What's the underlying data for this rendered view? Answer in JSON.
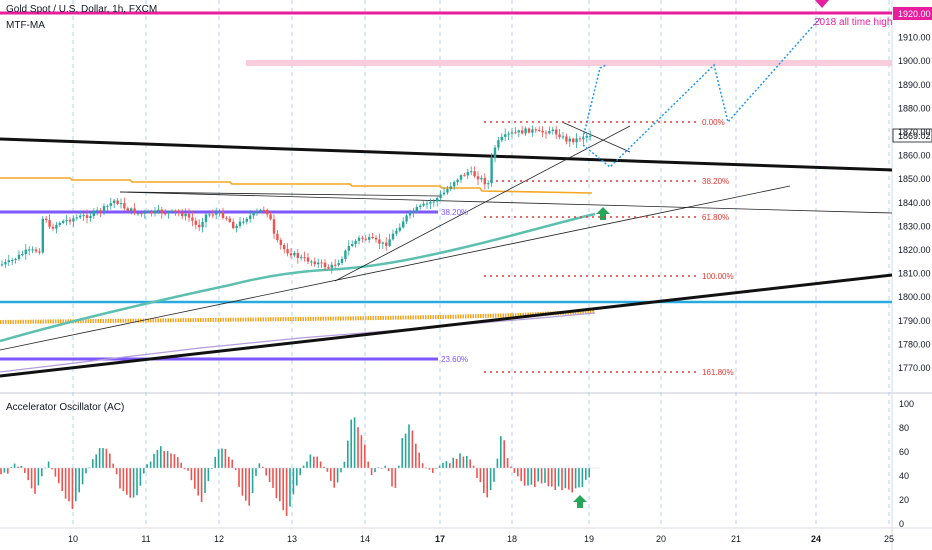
{
  "legend": {
    "title": "Gold Spot / U.S. Dollar, 1h, FXCM",
    "indicator": "MTF-MA",
    "oscillator": "Accelerator Oscillator (AC)"
  },
  "price_axis": {
    "labels": [
      "1920.00",
      "1910.00",
      "1900.00",
      "1890.00",
      "1880.00",
      "1870.00",
      "1860.00",
      "1850.00",
      "1840.00",
      "1830.00",
      "1820.00",
      "1810.00",
      "1800.00",
      "1790.00",
      "1780.00",
      "1770.00"
    ],
    "current_price": "1869.02",
    "current_price_color": "#131722",
    "highlight_price": "1920.00",
    "highlight_color": "#e91e9c"
  },
  "osc_axis": {
    "labels": [
      "100",
      "80",
      "60",
      "40",
      "20",
      "0"
    ]
  },
  "time_axis": {
    "labels": [
      "10",
      "11",
      "12",
      "13",
      "14",
      "17",
      "18",
      "19",
      "20",
      "21",
      "24",
      "25"
    ]
  },
  "annotations": {
    "ath_label": "2018 all time high",
    "fib_levels": [
      "0.00%",
      "38.20%",
      "61.80%",
      "100.00%",
      "161.80%"
    ],
    "fib_color": "#e53935",
    "purple_fib_1": "38.20%",
    "purple_fib_2": "23.60%",
    "purple_color": "#7e57ff"
  },
  "chart_data": {
    "type": "candlestick",
    "symbol": "Gold Spot / U.S. Dollar",
    "timeframe": "1h",
    "source": "FXCM",
    "y_range": [
      1765,
      1925
    ],
    "last_price": 1869.02,
    "resistance_zone": [
      1898,
      1901
    ],
    "ath_level": 1920,
    "horizontal_support": 1800,
    "fibonacci": [
      {
        "label": "0.00%",
        "value": 1873
      },
      {
        "label": "38.20%",
        "value": 1850
      },
      {
        "label": "61.80%",
        "value": 1836
      },
      {
        "label": "100.00%",
        "value": 1810
      },
      {
        "label": "161.80%",
        "value": 1771
      }
    ],
    "colors": {
      "up": "#26a69a",
      "down": "#ef5350",
      "ma": "#5cbfb0",
      "ma_orange": "#f5a623",
      "ath": "#e91e9c"
    }
  }
}
